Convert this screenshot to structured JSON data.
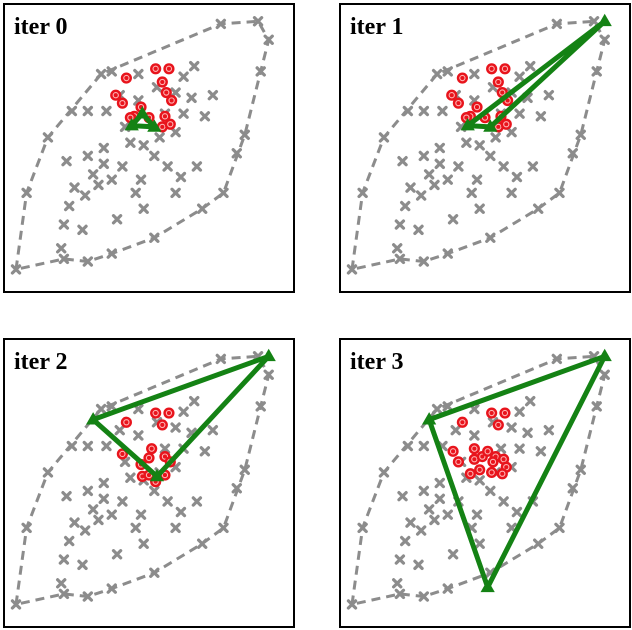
{
  "chart_data": {
    "type": "scatter",
    "layout": "2x2 grid of panels",
    "xlim": [
      0,
      100
    ],
    "ylim": [
      0,
      100
    ],
    "axes_ticks": false,
    "grid": false,
    "legend": false,
    "colors": {
      "points": "#8c8c8c",
      "hull": "#8c8c8c",
      "selected": "#e8141c",
      "triangle": "#148214"
    },
    "points": [
      [
        77,
        97
      ],
      [
        91,
        98
      ],
      [
        95,
        91
      ],
      [
        92,
        79
      ],
      [
        86,
        55
      ],
      [
        83,
        48
      ],
      [
        78,
        33
      ],
      [
        70,
        27
      ],
      [
        52,
        16
      ],
      [
        36,
        10
      ],
      [
        27,
        7
      ],
      [
        18,
        8
      ],
      [
        0,
        4
      ],
      [
        4,
        33
      ],
      [
        12,
        54
      ],
      [
        21,
        64
      ],
      [
        32,
        78
      ],
      [
        36,
        79
      ],
      [
        46,
        78
      ],
      [
        53,
        73
      ],
      [
        63,
        77
      ],
      [
        67,
        81
      ],
      [
        66,
        69
      ],
      [
        63,
        63
      ],
      [
        71,
        62
      ],
      [
        74,
        70
      ],
      [
        60,
        71
      ],
      [
        56,
        63
      ],
      [
        60,
        56
      ],
      [
        54,
        54
      ],
      [
        27,
        64
      ],
      [
        39,
        70
      ],
      [
        46,
        68
      ],
      [
        34,
        64
      ],
      [
        41,
        58
      ],
      [
        43,
        52
      ],
      [
        48,
        51
      ],
      [
        52,
        47
      ],
      [
        33,
        50
      ],
      [
        27,
        47
      ],
      [
        29,
        40
      ],
      [
        36,
        38
      ],
      [
        33,
        44
      ],
      [
        26,
        32
      ],
      [
        31,
        36
      ],
      [
        40,
        43
      ],
      [
        47,
        38
      ],
      [
        57,
        43
      ],
      [
        62,
        39
      ],
      [
        68,
        43
      ],
      [
        60,
        33
      ],
      [
        48,
        27
      ],
      [
        38,
        23
      ],
      [
        20,
        28
      ],
      [
        19,
        45
      ],
      [
        22,
        35
      ],
      [
        18,
        21
      ],
      [
        25,
        19
      ],
      [
        17,
        12
      ],
      [
        45,
        33
      ]
    ],
    "hull": [
      [
        0,
        4
      ],
      [
        4,
        33
      ],
      [
        12,
        54
      ],
      [
        32,
        78
      ],
      [
        77,
        97
      ],
      [
        91,
        98
      ],
      [
        95,
        91
      ],
      [
        92,
        79
      ],
      [
        86,
        55
      ],
      [
        78,
        33
      ],
      [
        70,
        27
      ],
      [
        52,
        16
      ],
      [
        36,
        10
      ],
      [
        27,
        7
      ],
      [
        18,
        8
      ],
      [
        0,
        4
      ]
    ],
    "panels": [
      {
        "title": "iter 0",
        "triangle": [
          [
            47.5,
            63
          ],
          [
            43.5,
            58.5
          ],
          [
            52,
            58
          ]
        ],
        "selected": [
          [
            41.5,
            76.5
          ],
          [
            52.5,
            80
          ],
          [
            57.5,
            80
          ],
          [
            55,
            75
          ],
          [
            37.5,
            70
          ],
          [
            40,
            67
          ],
          [
            56.5,
            71
          ],
          [
            58.5,
            68
          ],
          [
            44.5,
            62
          ],
          [
            50,
            61.5
          ],
          [
            55,
            58
          ],
          [
            58,
            59
          ],
          [
            56,
            62
          ],
          [
            43,
            61.5
          ],
          [
            47,
            65.5
          ]
        ]
      },
      {
        "title": "iter 1",
        "triangle": [
          [
            95,
            98
          ],
          [
            43.5,
            58.5
          ],
          [
            52,
            58
          ]
        ],
        "selected": [
          [
            41.5,
            76.5
          ],
          [
            52.5,
            80
          ],
          [
            57.5,
            80
          ],
          [
            55,
            75
          ],
          [
            37.5,
            70
          ],
          [
            40,
            67
          ],
          [
            56.5,
            71
          ],
          [
            58.5,
            68
          ],
          [
            44.5,
            62
          ],
          [
            50,
            61.5
          ],
          [
            55,
            58
          ],
          [
            58,
            59
          ],
          [
            56,
            62
          ],
          [
            43,
            61.5
          ],
          [
            47,
            65.5
          ]
        ]
      },
      {
        "title": "iter 2",
        "triangle": [
          [
            95,
            98
          ],
          [
            29,
            74
          ],
          [
            53,
            52.5
          ]
        ],
        "selected": [
          [
            41.5,
            73
          ],
          [
            52.5,
            76.5
          ],
          [
            57.5,
            76.5
          ],
          [
            55,
            72
          ],
          [
            40,
            61
          ],
          [
            47,
            57
          ],
          [
            50,
            59.5
          ],
          [
            56,
            60
          ],
          [
            58,
            58
          ],
          [
            51,
            63
          ],
          [
            47.5,
            52.5
          ],
          [
            50,
            53
          ],
          [
            56,
            53
          ],
          [
            52.5,
            50.5
          ]
        ]
      },
      {
        "title": "iter 3",
        "triangle": [
          [
            95,
            98
          ],
          [
            29,
            74
          ],
          [
            51,
            10.5
          ]
        ],
        "selected": [
          [
            41.5,
            73
          ],
          [
            52.5,
            76.5
          ],
          [
            57.5,
            76.5
          ],
          [
            55,
            72
          ],
          [
            38,
            62
          ],
          [
            40,
            58
          ],
          [
            46,
            59
          ],
          [
            49,
            60
          ],
          [
            54,
            60
          ],
          [
            57,
            59
          ],
          [
            58,
            56
          ],
          [
            53,
            58
          ],
          [
            51,
            62
          ],
          [
            46,
            63
          ],
          [
            52.5,
            54
          ],
          [
            48,
            55
          ],
          [
            44.5,
            53.5
          ],
          [
            56.5,
            53.5
          ]
        ]
      }
    ]
  }
}
